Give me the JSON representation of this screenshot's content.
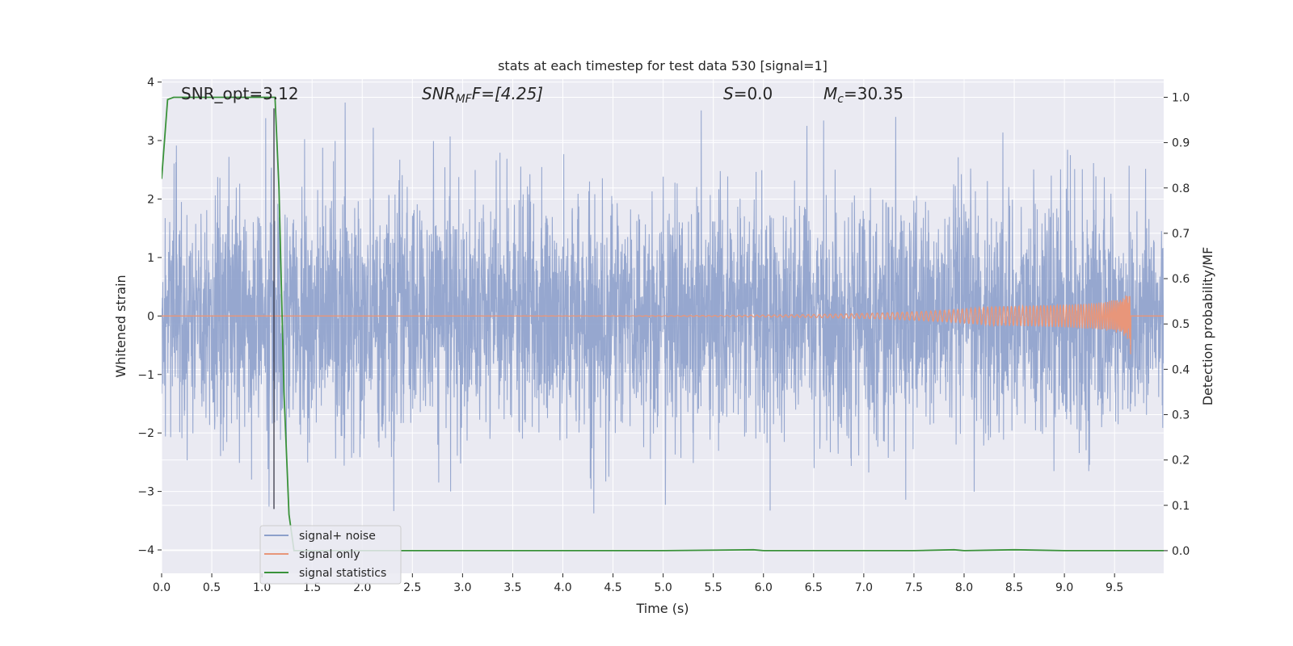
{
  "chart_data": {
    "type": "line",
    "title": "stats at each timestep for test data 530 [signal=1]",
    "xlabel": "Time (s)",
    "ylabel": "Whitened strain",
    "ylabel_right": "Detection probability/MF",
    "xlim": [
      0.0,
      9.99
    ],
    "ylim": [
      -4.4,
      4.05
    ],
    "ylim_right": [
      -0.05,
      1.04
    ],
    "xticks": [
      "0.0",
      "0.5",
      "1.0",
      "1.5",
      "2.0",
      "2.5",
      "3.0",
      "3.5",
      "4.0",
      "4.5",
      "5.0",
      "5.5",
      "6.0",
      "6.5",
      "7.0",
      "7.5",
      "8.0",
      "8.5",
      "9.0",
      "9.5"
    ],
    "yticks": [
      "−4",
      "−3",
      "−2",
      "−1",
      "0",
      "1",
      "2",
      "3",
      "4"
    ],
    "yticks_right": [
      "0.0",
      "0.1",
      "0.2",
      "0.3",
      "0.4",
      "0.5",
      "0.6",
      "0.7",
      "0.8",
      "0.9",
      "1.0"
    ],
    "grid": true,
    "legend_position": "lower-left",
    "annotations": {
      "snr_opt": "SNR_opt=3.12",
      "snr_mf_prefix": "SNR",
      "snr_mf_sub": "MF",
      "snr_mf_value": "F=[4.25]",
      "s_symbol": "S",
      "s_value": "=0.0",
      "mc_symbol": "M",
      "mc_sub": "c",
      "mc_value": "=30.35"
    },
    "marker_time": 1.12,
    "series": [
      {
        "name": "signal+ noise",
        "color": "#8da0cb",
        "axis": "left",
        "kind": "noise",
        "sigma": 1.0,
        "amplitude_range": [
          -4.0,
          3.65
        ]
      },
      {
        "name": "signal only",
        "color": "#e8967a",
        "axis": "left",
        "kind": "chirp",
        "merger_time": 9.66,
        "peak_amplitude": 0.7
      },
      {
        "name": "signal statistics",
        "color": "#3a923a",
        "axis": "right",
        "x": [
          0.0,
          0.06,
          0.12,
          0.5,
          1.0,
          1.13,
          1.17,
          1.22,
          1.27,
          1.32,
          1.5,
          2.0,
          3.0,
          4.0,
          5.0,
          5.9,
          6.0,
          6.5,
          7.0,
          7.5,
          7.9,
          8.0,
          8.5,
          9.0,
          9.5,
          9.99
        ],
        "values": [
          0.82,
          0.995,
          1.0,
          1.0,
          1.0,
          1.0,
          0.8,
          0.35,
          0.08,
          0.0,
          0.0,
          0.0,
          0.0,
          0.0,
          0.0,
          0.002,
          0.0,
          0.0,
          0.0,
          0.0,
          0.002,
          0.0,
          0.002,
          0.0,
          0.0,
          0.0
        ]
      }
    ]
  },
  "colors": {
    "axes_bg": "#eaeaf2",
    "grid": "#ffffff",
    "marker_line": "#2b2b3a"
  }
}
